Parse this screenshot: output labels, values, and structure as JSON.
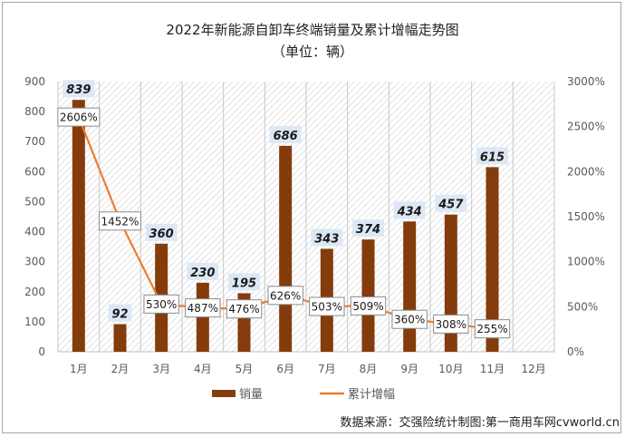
{
  "chart_data": {
    "type": "bar",
    "title": "2022年新能源自卸车终端销量及累计增幅走势图",
    "subtitle": "（单位：辆）",
    "categories": [
      "1月",
      "2月",
      "3月",
      "4月",
      "5月",
      "6月",
      "7月",
      "8月",
      "9月",
      "10月",
      "11月",
      "12月"
    ],
    "series": [
      {
        "name": "销量",
        "type": "bar",
        "axis": "left",
        "color": "#843c0c",
        "values": [
          839,
          92,
          360,
          230,
          195,
          686,
          343,
          374,
          434,
          457,
          615,
          null
        ],
        "labels": [
          "839",
          "92",
          "360",
          "230",
          "195",
          "686",
          "343",
          "374",
          "434",
          "457",
          "615",
          ""
        ]
      },
      {
        "name": "累计增幅",
        "type": "line",
        "axis": "right",
        "color": "#ed7d31",
        "values": [
          2606,
          1452,
          530,
          487,
          476,
          626,
          503,
          509,
          360,
          308,
          255,
          null
        ],
        "labels": [
          "2606%",
          "1452%",
          "530%",
          "487%",
          "476%",
          "626%",
          "503%",
          "509%",
          "360%",
          "308%",
          "255%",
          ""
        ]
      }
    ],
    "y_left": {
      "min": 0,
      "max": 900,
      "ticks": [
        "0",
        "100",
        "200",
        "300",
        "400",
        "500",
        "600",
        "700",
        "800",
        "900"
      ]
    },
    "y_right": {
      "min": 0,
      "max": 3000,
      "ticks": [
        "0%",
        "500%",
        "1000%",
        "1500%",
        "2000%",
        "2500%",
        "3000%"
      ]
    },
    "legend": "bottom",
    "grid": false
  },
  "source_text": "数据来源：交强险统计制图:第一商用车网cvworld.cn"
}
